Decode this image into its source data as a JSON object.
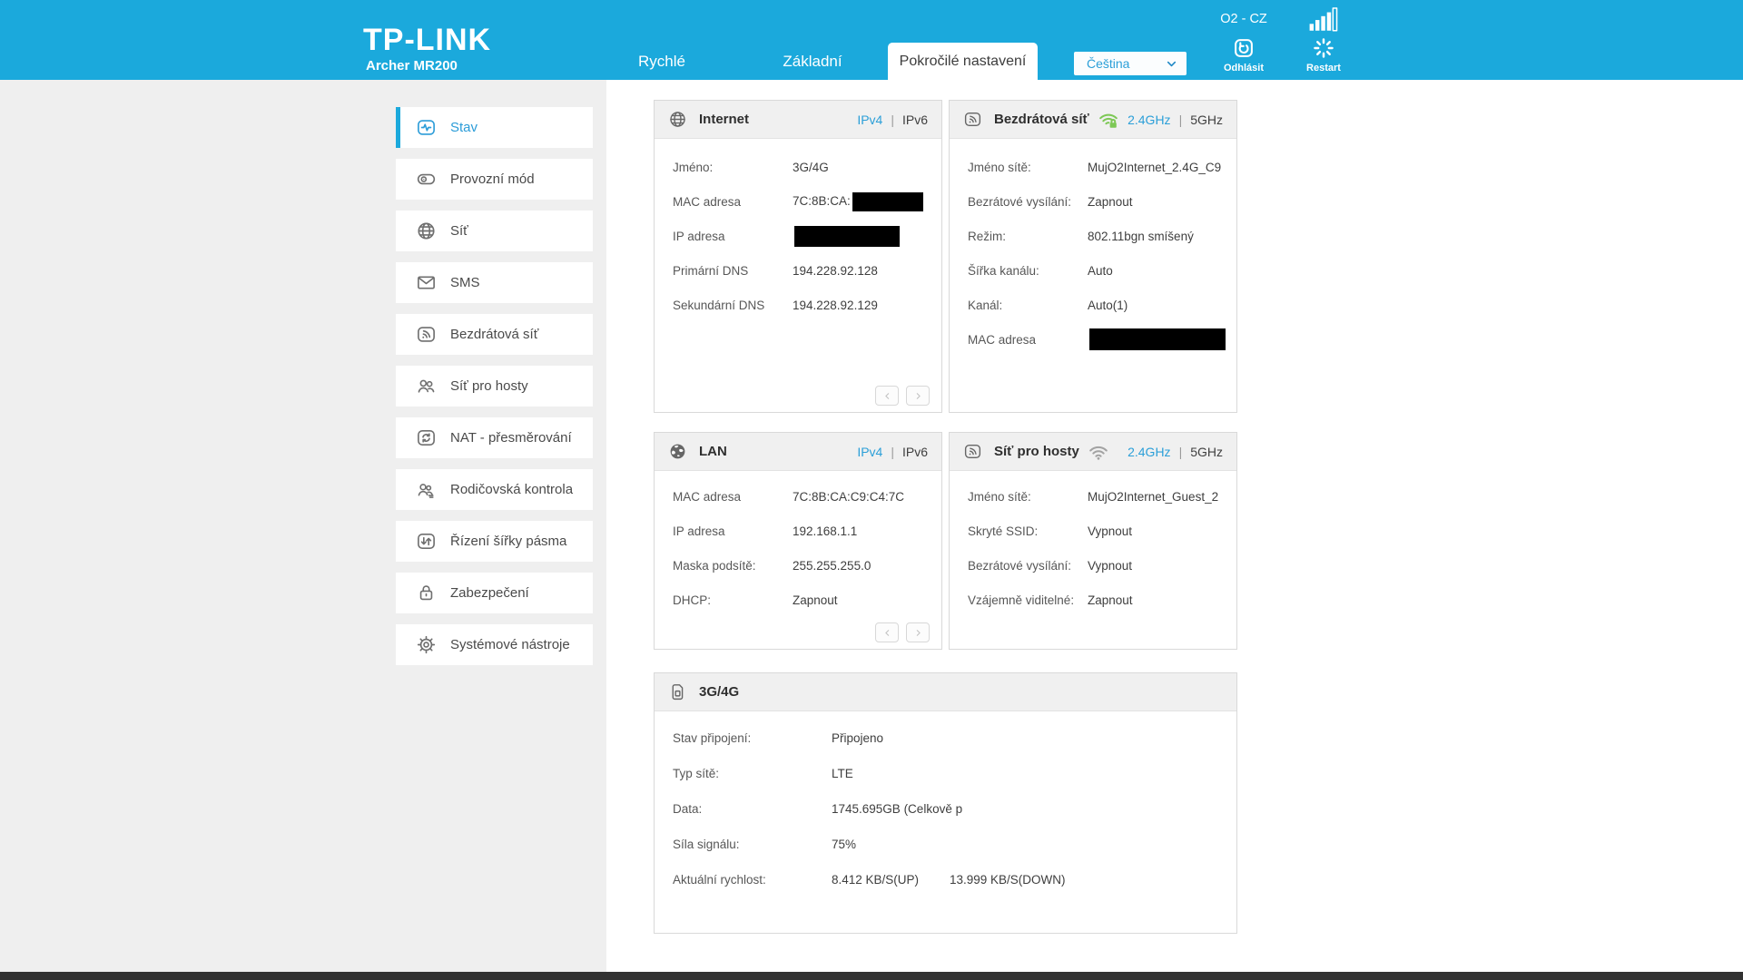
{
  "header": {
    "logo_text": "TP-LINK",
    "model": "Archer MR200",
    "carrier": "O2 - CZ",
    "signal_icon": "signal-bars-icon",
    "nav_tabs": [
      {
        "label": "Rychlé",
        "active": false
      },
      {
        "label": "Základní",
        "active": false
      },
      {
        "label": "Pokročilé nastavení",
        "active": true
      }
    ],
    "language_select": {
      "value": "Čeština",
      "icon": "chevron-down-icon"
    },
    "logout": {
      "label": "Odhlásit",
      "icon": "logout-icon"
    },
    "restart": {
      "label": "Restart",
      "icon": "restart-icon"
    }
  },
  "sidebar": {
    "items": [
      {
        "label": "Stav",
        "icon": "pulse-icon",
        "active": true
      },
      {
        "label": "Provozní mód",
        "icon": "operation-mode-icon",
        "active": false
      },
      {
        "label": "Síť",
        "icon": "globe-icon",
        "active": false
      },
      {
        "label": "SMS",
        "icon": "envelope-icon",
        "active": false
      },
      {
        "label": "Bezdrátová síť",
        "icon": "wifi-square-icon",
        "active": false
      },
      {
        "label": "Síť pro hosty",
        "icon": "guests-icon",
        "active": false
      },
      {
        "label": "NAT - přesměrování",
        "icon": "nat-icon",
        "active": false
      },
      {
        "label": "Rodičovská kontrola",
        "icon": "parental-icon",
        "active": false
      },
      {
        "label": "Řízení šířky pásma",
        "icon": "bandwidth-icon",
        "active": false
      },
      {
        "label": "Zabezpečení",
        "icon": "lock-icon",
        "active": false
      },
      {
        "label": "Systémové nástroje",
        "icon": "gear-icon",
        "active": false
      }
    ]
  },
  "panels": {
    "internet": {
      "title": "Internet",
      "icon": "globe-icon",
      "ip_tabs": {
        "active": "IPv4",
        "inactive": "IPv6"
      },
      "rows": [
        {
          "label": "Jméno:",
          "value": "3G/4G"
        },
        {
          "label": "MAC adresa",
          "value": "7C:8B:CA:",
          "redact_width": 78,
          "redact_height": 21
        },
        {
          "label": "IP adresa",
          "value": "",
          "redact_width": 116,
          "redact_height": 23
        },
        {
          "label": "Primární DNS",
          "value": "194.228.92.128"
        },
        {
          "label": "Sekundární DNS",
          "value": "194.228.92.129"
        }
      ]
    },
    "wireless": {
      "title": "Bezdrátová síť",
      "icon": "wifi-square-icon",
      "status_icon": "wifi-lock-green-icon",
      "band_tabs": {
        "active": "2.4GHz",
        "inactive": "5GHz"
      },
      "rows": [
        {
          "label": "Jméno sítě:",
          "value": "MujO2Internet_2.4G_C9"
        },
        {
          "label": "Bezrátové vysílání:",
          "value": "Zapnout"
        },
        {
          "label": "Režim:",
          "value": "802.11bgn smíšený"
        },
        {
          "label": "Šířka kanálu:",
          "value": "Auto"
        },
        {
          "label": "Kanál:",
          "value": "Auto(1)"
        },
        {
          "label": "MAC adresa",
          "value": "",
          "redact_width": 150,
          "redact_height": 24
        }
      ]
    },
    "lan": {
      "title": "LAN",
      "icon": "lan-globe-icon",
      "ip_tabs": {
        "active": "IPv4",
        "inactive": "IPv6"
      },
      "rows": [
        {
          "label": "MAC adresa",
          "value": "7C:8B:CA:C9:C4:7C"
        },
        {
          "label": "IP adresa",
          "value": "192.168.1.1"
        },
        {
          "label": "Maska podsítě:",
          "value": "255.255.255.0"
        },
        {
          "label": "DHCP:",
          "value": "Zapnout"
        }
      ]
    },
    "guest": {
      "title": "Síť pro hosty",
      "icon": "wifi-square-icon",
      "status_icon": "wifi-gray-icon",
      "band_tabs": {
        "active": "2.4GHz",
        "inactive": "5GHz"
      },
      "rows": [
        {
          "label": "Jméno sítě:",
          "value": "MujO2Internet_Guest_2"
        },
        {
          "label": "Skryté SSID:",
          "value": "Vypnout"
        },
        {
          "label": "Bezrátové vysílání:",
          "value": "Vypnout"
        },
        {
          "label": "Vzájemně viditelné:",
          "value": "Zapnout"
        }
      ]
    },
    "mobile": {
      "title": "3G/4G",
      "icon": "sim-icon",
      "rows": [
        {
          "label": "Stav připojení:",
          "value": "Připojeno"
        },
        {
          "label": "Typ sítě:",
          "value": "LTE"
        },
        {
          "label": "Data:",
          "value": "1745.695GB (Celkově p"
        },
        {
          "label": "Síla signálu:",
          "value": "75%"
        },
        {
          "label": "Aktuální rychlost:",
          "value": "8.412 KB/S(UP)",
          "value2": "13.999 KB/S(DOWN)"
        }
      ]
    }
  },
  "ui": {
    "tab_separator": "|",
    "pager_prev_icon": "chevron-left-icon",
    "pager_next_icon": "chevron-right-icon"
  },
  "colors": {
    "header_bg": "#1BA9DC",
    "accent_blue": "#2B9FD8",
    "green_wifi": "#7DC855",
    "redaction": "#000000"
  }
}
